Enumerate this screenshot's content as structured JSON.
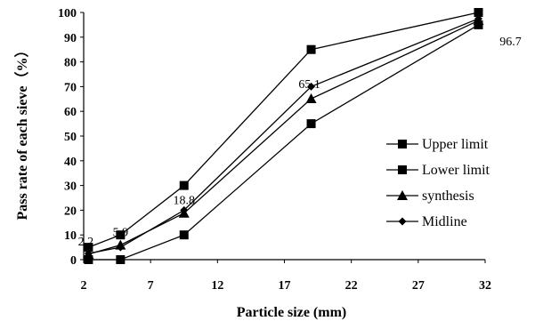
{
  "chart_data": {
    "type": "line",
    "xlabel": "Particle size (mm)",
    "ylabel": "Pass rate of each sieve（%）",
    "xlim": [
      2,
      32
    ],
    "ylim": [
      0,
      100
    ],
    "xticks": [
      2,
      7,
      12,
      17,
      22,
      27,
      32
    ],
    "yticks": [
      0,
      10,
      20,
      30,
      40,
      50,
      60,
      70,
      80,
      90,
      100
    ],
    "x": [
      2.36,
      4.75,
      9.5,
      19,
      31.5
    ],
    "grid": false,
    "legend_position": "right",
    "series": [
      {
        "name": "Upper limit",
        "marker": "square",
        "values": [
          5,
          10,
          30,
          85,
          100
        ]
      },
      {
        "name": "Lower limit",
        "marker": "square",
        "values": [
          0,
          0,
          10,
          55,
          95
        ]
      },
      {
        "name": "synthesis",
        "marker": "triangle",
        "values": [
          2.2,
          5.9,
          18.8,
          65.1,
          96.7
        ]
      },
      {
        "name": "Midline",
        "marker": "diamond",
        "values": [
          2.5,
          5,
          20,
          70,
          97.5
        ]
      }
    ],
    "annotations": [
      {
        "text": "2.2",
        "x": 2.36,
        "y": 2.2
      },
      {
        "text": "5.9",
        "x": 4.75,
        "y": 5.9
      },
      {
        "text": "18.8",
        "x": 9.5,
        "y": 18.8
      },
      {
        "text": "65.1",
        "x": 19,
        "y": 65.1
      },
      {
        "text": "96.7",
        "x": 31.5,
        "y": 96.7
      }
    ]
  }
}
